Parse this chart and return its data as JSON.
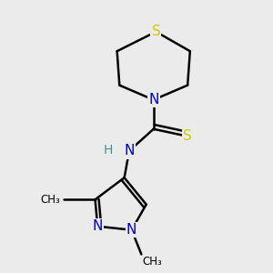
{
  "background_color": "#ebebeb",
  "atom_colors": {
    "C": "#000000",
    "N": "#0000cc",
    "S": "#cccc00",
    "H": "#4a9090"
  },
  "bond_color": "#000000",
  "bond_width": 1.8,
  "figsize": [
    3.0,
    3.0
  ],
  "dpi": 100
}
